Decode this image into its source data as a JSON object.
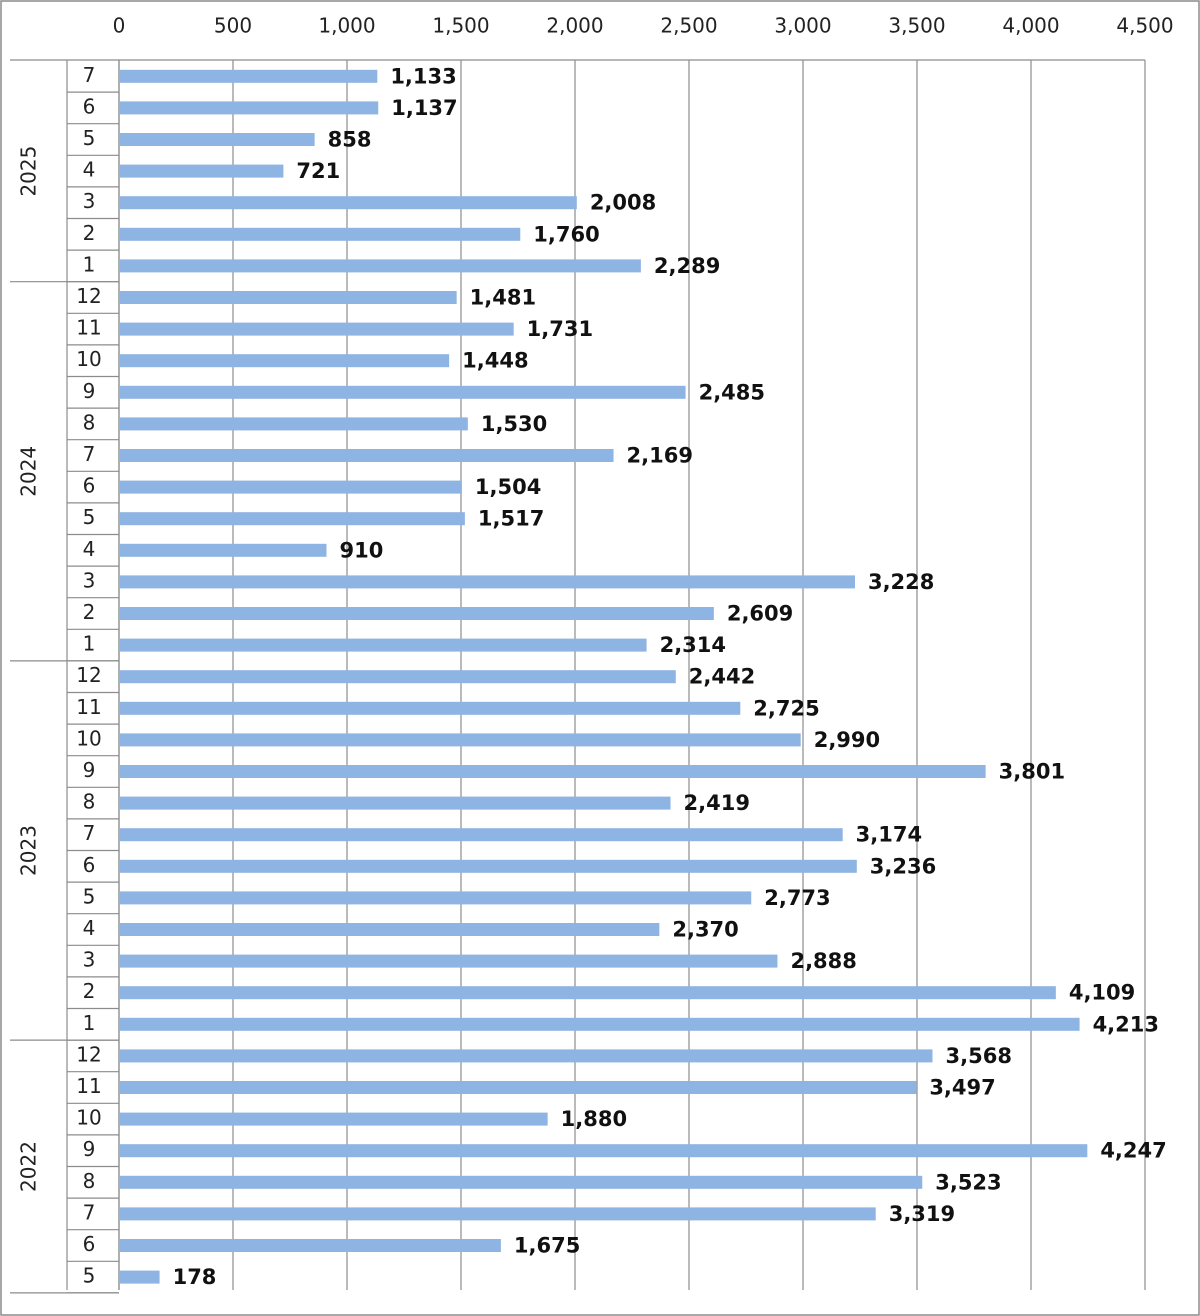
{
  "colors": {
    "bar": "#8eb4e3",
    "grid": "#8c8c8c",
    "border": "#8c8c8c",
    "text": "#222222"
  },
  "chart_data": {
    "type": "bar",
    "orientation": "horizontal",
    "title": "",
    "xlabel": "",
    "ylabel": "",
    "xlim": [
      0,
      4500
    ],
    "x_ticks": [
      "0",
      "500",
      "1,000",
      "1,500",
      "2,000",
      "2,500",
      "3,000",
      "3,500",
      "4,000",
      "4,500"
    ],
    "x_tick_values": [
      0,
      500,
      1000,
      1500,
      2000,
      2500,
      3000,
      3500,
      4000,
      4500
    ],
    "x_axis_position": "top",
    "grid": true,
    "legend": "none",
    "groups": [
      {
        "year": "2025",
        "months": [
          "7",
          "6",
          "5",
          "4",
          "3",
          "2",
          "1"
        ],
        "values": [
          1133,
          1137,
          858,
          721,
          2008,
          1760,
          2289
        ],
        "labels": [
          "1,133",
          "1,137",
          "858",
          "721",
          "2,008",
          "1,760",
          "2,289"
        ]
      },
      {
        "year": "2024",
        "months": [
          "12",
          "11",
          "10",
          "9",
          "8",
          "7",
          "6",
          "5",
          "4",
          "3",
          "2",
          "1"
        ],
        "values": [
          1481,
          1731,
          1448,
          2485,
          1530,
          2169,
          1504,
          1517,
          910,
          3228,
          2609,
          2314
        ],
        "labels": [
          "1,481",
          "1,731",
          "1,448",
          "2,485",
          "1,530",
          "2,169",
          "1,504",
          "1,517",
          "910",
          "3,228",
          "2,609",
          "2,314"
        ]
      },
      {
        "year": "2023",
        "months": [
          "12",
          "11",
          "10",
          "9",
          "8",
          "7",
          "6",
          "5",
          "4",
          "3",
          "2",
          "1"
        ],
        "values": [
          2442,
          2725,
          2990,
          3801,
          2419,
          3174,
          3236,
          2773,
          2370,
          2888,
          4109,
          4213
        ],
        "labels": [
          "2,442",
          "2,725",
          "2,990",
          "3,801",
          "2,419",
          "3,174",
          "3,236",
          "2,773",
          "2,370",
          "2,888",
          "4,109",
          "4,213"
        ]
      },
      {
        "year": "2022",
        "months": [
          "12",
          "11",
          "10",
          "9",
          "8",
          "7",
          "6",
          "5"
        ],
        "values": [
          3568,
          3497,
          1880,
          4247,
          3523,
          3319,
          1675,
          178
        ],
        "labels": [
          "3,568",
          "3,497",
          "1,880",
          "4,247",
          "3,523",
          "3,319",
          "1,675",
          "178"
        ]
      }
    ]
  }
}
